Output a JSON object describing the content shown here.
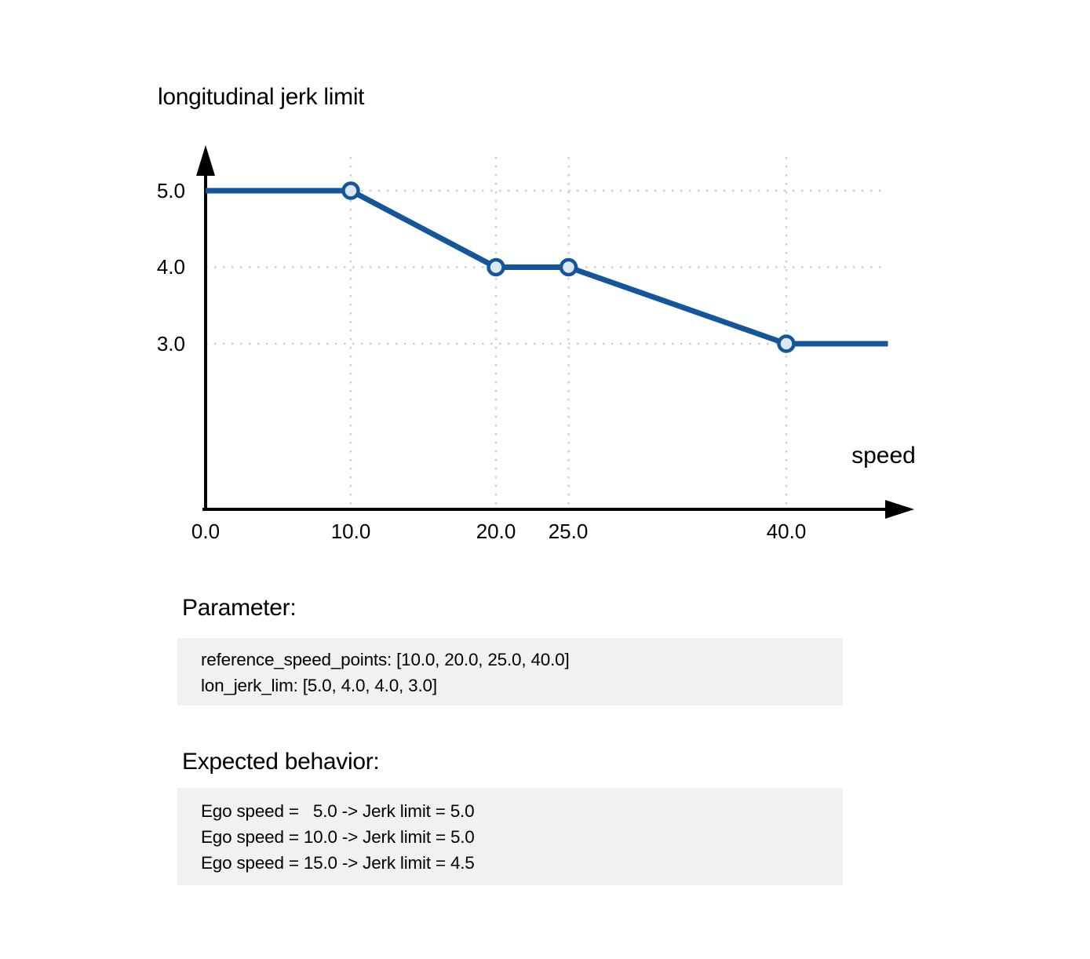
{
  "chart_data": {
    "type": "line",
    "title": "longitudinal jerk limit",
    "xlabel": "speed",
    "ylabel": "",
    "series": [
      {
        "name": "lon_jerk_lim",
        "x": [
          0.0,
          10.0,
          20.0,
          25.0,
          40.0,
          47.0
        ],
        "y": [
          5.0,
          5.0,
          4.0,
          4.0,
          3.0,
          3.0
        ]
      }
    ],
    "reference_points": {
      "x": [
        10.0,
        20.0,
        25.0,
        40.0
      ],
      "y": [
        5.0,
        4.0,
        4.0,
        3.0
      ]
    },
    "x_ticks": [
      {
        "value": 0.0,
        "label": "0.0"
      },
      {
        "value": 10.0,
        "label": "10.0"
      },
      {
        "value": 20.0,
        "label": "20.0"
      },
      {
        "value": 25.0,
        "label": "25.0"
      },
      {
        "value": 40.0,
        "label": "40.0"
      }
    ],
    "y_ticks": [
      {
        "value": 5.0,
        "label": "5.0"
      },
      {
        "value": 4.0,
        "label": "4.0"
      },
      {
        "value": 3.0,
        "label": "3.0"
      }
    ],
    "xlim": [
      0,
      49
    ],
    "ylim_shown": [
      3.0,
      5.0
    ],
    "grid": true,
    "legend": false,
    "colors": {
      "line": "#14569b",
      "marker_fill": "#dbe8f4",
      "grid": "#cdcdcd",
      "axis": "#000000"
    }
  },
  "parameter_section": {
    "heading": "Parameter:",
    "lines": [
      "reference_speed_points: [10.0, 20.0, 25.0, 40.0]",
      "lon_jerk_lim: [5.0, 4.0, 4.0, 3.0]"
    ]
  },
  "expected_behavior_section": {
    "heading": "Expected behavior:",
    "lines": [
      "Ego speed =   5.0 -> Jerk limit = 5.0",
      "Ego speed = 10.0 -> Jerk limit = 5.0",
      "Ego speed = 15.0 -> Jerk limit = 4.5"
    ]
  }
}
